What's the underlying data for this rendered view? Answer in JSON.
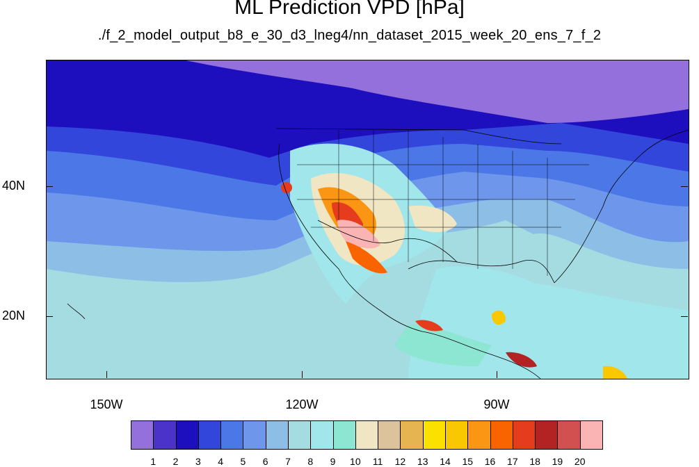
{
  "title": "ML Prediction VPD [hPa]",
  "subtitle": "./f_2_model_output_b8_e_30_d3_lneg4/nn_dataset_2015_week_20_ens_7_f_2",
  "axes": {
    "lat_labels": [
      "40N",
      "20N"
    ],
    "lon_labels": [
      "150W",
      "120W",
      "90W"
    ]
  },
  "colorbar": {
    "labels": [
      "1",
      "2",
      "3",
      "4",
      "5",
      "6",
      "7",
      "8",
      "9",
      "10",
      "11",
      "12",
      "13",
      "14",
      "15",
      "16",
      "17",
      "18",
      "19",
      "20"
    ],
    "colors": [
      "#9370db",
      "#4b32c8",
      "#1e0fbe",
      "#3246dc",
      "#4b78e6",
      "#6e96eb",
      "#8cbee6",
      "#a5dce1",
      "#a0e6eb",
      "#8ce6d2",
      "#f0e6c3",
      "#dcc39b",
      "#e6b450",
      "#fae100",
      "#fac800",
      "#fa9614",
      "#fa6400",
      "#e63c1e",
      "#b42323",
      "#d25050",
      "#fab4b4"
    ]
  },
  "map": {
    "region": "North America / Eastern Pacific",
    "colors": {
      "ocean_south": "#a5dce1",
      "ocean_mid": "#8cbee6",
      "ocean_band": "#6e96eb",
      "cool_band": "#4b78e6",
      "cold_band": "#3246dc",
      "coldest_band": "#1e0fbe",
      "north_cap": "#9370db",
      "dry_hot": "#fab4b4",
      "border_line": "#000000"
    }
  }
}
